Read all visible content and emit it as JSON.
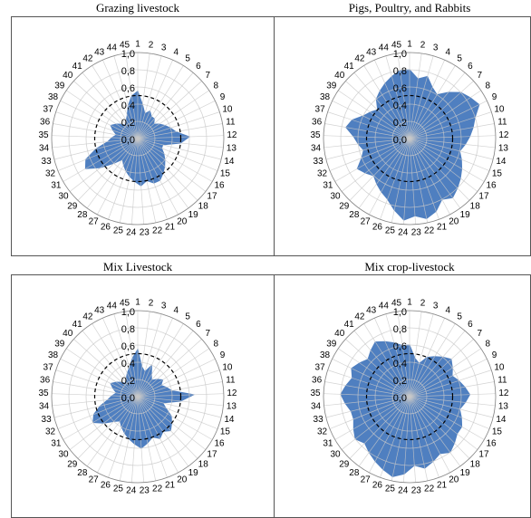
{
  "chart_data": [
    {
      "type": "radar",
      "title": "Grazing livestock",
      "color": "#4f7fc0",
      "categories": [
        "1",
        "2",
        "3",
        "4",
        "5",
        "6",
        "7",
        "8",
        "9",
        "10",
        "11",
        "12",
        "13",
        "14",
        "15",
        "16",
        "17",
        "18",
        "19",
        "20",
        "21",
        "22",
        "23",
        "24",
        "25",
        "26",
        "27",
        "28",
        "29",
        "30",
        "31",
        "32",
        "33",
        "34",
        "35",
        "36",
        "37",
        "38",
        "39",
        "40",
        "41",
        "42",
        "43",
        "44",
        "45"
      ],
      "values": [
        0.55,
        0.4,
        0.3,
        0.35,
        0.3,
        0.3,
        0.25,
        0.3,
        0.35,
        0.4,
        0.45,
        0.6,
        0.5,
        0.3,
        0.3,
        0.35,
        0.4,
        0.45,
        0.5,
        0.55,
        0.55,
        0.5,
        0.55,
        0.5,
        0.45,
        0.4,
        0.35,
        0.3,
        0.4,
        0.55,
        0.7,
        0.65,
        0.5,
        0.35,
        0.3,
        0.25,
        0.3,
        0.35,
        0.3,
        0.25,
        0.2,
        0.25,
        0.3,
        0.4,
        0.5
      ],
      "rlim": [
        0,
        1
      ],
      "rticks": [
        {
          "value": 0,
          "label": "0,0"
        },
        {
          "value": 0.2,
          "label": "0,2"
        },
        {
          "value": 0.4,
          "label": "0,4"
        },
        {
          "value": 0.6,
          "label": "0,6"
        },
        {
          "value": 0.8,
          "label": "0,8"
        },
        {
          "value": 1,
          "label": "1,0"
        }
      ],
      "reference_circle": 0.5
    },
    {
      "type": "radar",
      "title": "Pigs, Poultry, and Rabbits",
      "color": "#4f7fc0",
      "categories": [
        "1",
        "2",
        "3",
        "4",
        "5",
        "6",
        "7",
        "8",
        "9",
        "10",
        "11",
        "12",
        "13",
        "14",
        "15",
        "16",
        "17",
        "18",
        "19",
        "20",
        "21",
        "22",
        "23",
        "24",
        "25",
        "26",
        "27",
        "28",
        "29",
        "30",
        "31",
        "32",
        "33",
        "34",
        "35",
        "36",
        "37",
        "38",
        "39",
        "40",
        "41",
        "42",
        "43",
        "44",
        "45"
      ],
      "values": [
        0.8,
        0.7,
        0.75,
        0.65,
        0.6,
        0.7,
        0.8,
        0.85,
        0.9,
        0.8,
        0.75,
        0.7,
        0.65,
        0.6,
        0.65,
        0.7,
        0.75,
        0.8,
        0.85,
        0.8,
        0.9,
        0.95,
        0.9,
        0.95,
        0.85,
        0.75,
        0.7,
        0.65,
        0.6,
        0.65,
        0.7,
        0.6,
        0.55,
        0.6,
        0.65,
        0.75,
        0.7,
        0.6,
        0.55,
        0.5,
        0.6,
        0.65,
        0.7,
        0.75,
        0.8
      ],
      "rlim": [
        0,
        1
      ],
      "rticks": [
        {
          "value": 0,
          "label": "0,0"
        },
        {
          "value": 0.2,
          "label": "0,2"
        },
        {
          "value": 0.4,
          "label": "0,4"
        },
        {
          "value": 0.6,
          "label": "0,6"
        },
        {
          "value": 0.8,
          "label": "0,8"
        },
        {
          "value": 1,
          "label": "1,0"
        }
      ],
      "reference_circle": 0.5
    },
    {
      "type": "radar",
      "title": "Mix Livestock",
      "color": "#4f7fc0",
      "categories": [
        "1",
        "2",
        "3",
        "4",
        "5",
        "6",
        "7",
        "8",
        "9",
        "10",
        "11",
        "12",
        "13",
        "14",
        "15",
        "16",
        "17",
        "18",
        "19",
        "20",
        "21",
        "22",
        "23",
        "24",
        "25",
        "26",
        "27",
        "28",
        "29",
        "30",
        "31",
        "32",
        "33",
        "34",
        "35",
        "36",
        "37",
        "38",
        "39",
        "40",
        "41",
        "42",
        "43",
        "44",
        "45"
      ],
      "values": [
        0.55,
        0.35,
        0.3,
        0.4,
        0.3,
        0.25,
        0.3,
        0.35,
        0.3,
        0.35,
        0.4,
        0.65,
        0.5,
        0.3,
        0.35,
        0.45,
        0.5,
        0.55,
        0.5,
        0.55,
        0.5,
        0.55,
        0.6,
        0.55,
        0.5,
        0.45,
        0.4,
        0.35,
        0.4,
        0.5,
        0.6,
        0.55,
        0.45,
        0.35,
        0.3,
        0.25,
        0.3,
        0.35,
        0.3,
        0.25,
        0.2,
        0.25,
        0.3,
        0.35,
        0.45
      ],
      "rlim": [
        0,
        1
      ],
      "rticks": [
        {
          "value": 0,
          "label": "0,0"
        },
        {
          "value": 0.2,
          "label": "0,2"
        },
        {
          "value": 0.4,
          "label": "0,4"
        },
        {
          "value": 0.6,
          "label": "0,6"
        },
        {
          "value": 0.8,
          "label": "0,8"
        },
        {
          "value": 1,
          "label": "1,0"
        }
      ],
      "reference_circle": 0.5
    },
    {
      "type": "radar",
      "title": "Mix crop-livestock",
      "color": "#4f7fc0",
      "categories": [
        "1",
        "2",
        "3",
        "4",
        "5",
        "6",
        "7",
        "8",
        "9",
        "10",
        "11",
        "12",
        "13",
        "14",
        "15",
        "16",
        "17",
        "18",
        "19",
        "20",
        "21",
        "22",
        "23",
        "24",
        "25",
        "26",
        "27",
        "28",
        "29",
        "30",
        "31",
        "32",
        "33",
        "34",
        "35",
        "36",
        "37",
        "38",
        "39",
        "40",
        "41",
        "42",
        "43",
        "44",
        "45"
      ],
      "values": [
        0.6,
        0.45,
        0.4,
        0.5,
        0.55,
        0.6,
        0.65,
        0.6,
        0.55,
        0.6,
        0.65,
        0.7,
        0.65,
        0.6,
        0.65,
        0.7,
        0.7,
        0.75,
        0.8,
        0.75,
        0.8,
        0.85,
        0.8,
        0.9,
        0.95,
        0.9,
        0.85,
        0.8,
        0.75,
        0.8,
        0.75,
        0.7,
        0.7,
        0.75,
        0.8,
        0.75,
        0.7,
        0.75,
        0.7,
        0.65,
        0.7,
        0.75,
        0.7,
        0.65,
        0.6
      ],
      "rlim": [
        0,
        1
      ],
      "rticks": [
        {
          "value": 0,
          "label": "0,0"
        },
        {
          "value": 0.2,
          "label": "0,2"
        },
        {
          "value": 0.4,
          "label": "0,4"
        },
        {
          "value": 0.6,
          "label": "0,6"
        },
        {
          "value": 0.8,
          "label": "0,8"
        },
        {
          "value": 1,
          "label": "1,0"
        }
      ],
      "reference_circle": 0.5
    }
  ]
}
